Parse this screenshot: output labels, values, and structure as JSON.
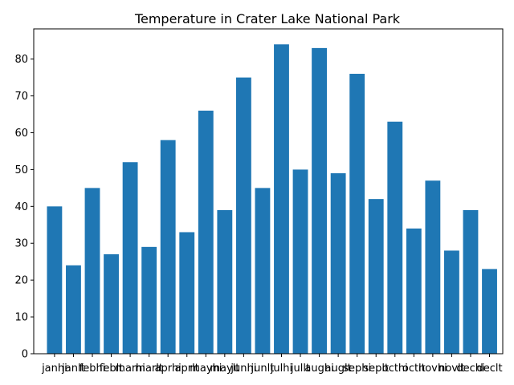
{
  "chart_data": {
    "type": "bar",
    "title": "Temperature in Crater Lake National Park",
    "xlabel": "",
    "ylabel": "",
    "categories": [
      "janhi",
      "janlt",
      "febhi",
      "feblt",
      "marhi",
      "marlt",
      "aprhi",
      "aprlt",
      "mayhi",
      "maylt",
      "junhi",
      "junlt",
      "julhi",
      "jullt",
      "aughi",
      "auglt",
      "sephi",
      "seplt",
      "octhi",
      "octlt",
      "novhi",
      "novlt",
      "dechi",
      "declt"
    ],
    "values": [
      40,
      24,
      45,
      27,
      52,
      29,
      58,
      33,
      66,
      39,
      75,
      45,
      84,
      50,
      83,
      49,
      76,
      42,
      63,
      34,
      47,
      28,
      39,
      23
    ],
    "ylim": [
      0,
      88.2
    ],
    "yticks": [
      0,
      10,
      20,
      30,
      40,
      50,
      60,
      70,
      80
    ],
    "grid": false,
    "bar_color": "#1f77b4"
  }
}
